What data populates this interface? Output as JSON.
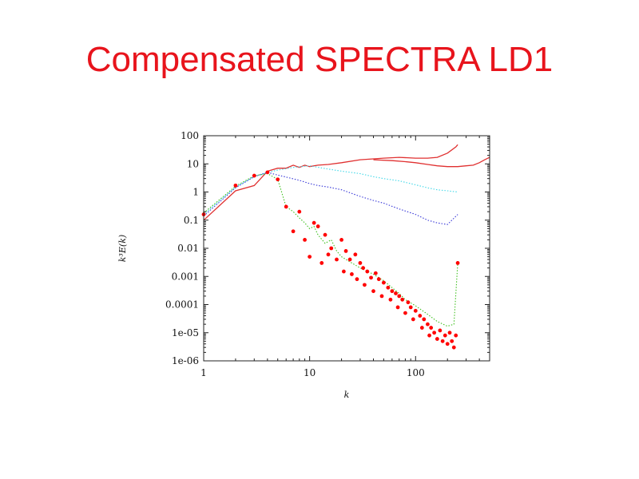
{
  "slide": {
    "title": "Compensated SPECTRA LD1"
  },
  "chart_data": {
    "type": "line",
    "xscale": "log",
    "yscale": "log",
    "xlim": [
      1,
      500
    ],
    "ylim": [
      1e-06,
      100
    ],
    "xlabel": "k",
    "ylabel": "k³E(k)",
    "x_ticks": [
      {
        "value": 1,
        "label": "1"
      },
      {
        "value": 10,
        "label": "10"
      },
      {
        "value": 100,
        "label": "100"
      }
    ],
    "y_ticks": [
      {
        "value": 100,
        "label": "100"
      },
      {
        "value": 10,
        "label": "10"
      },
      {
        "value": 1,
        "label": "1"
      },
      {
        "value": 0.1,
        "label": "0.1"
      },
      {
        "value": 0.01,
        "label": "0.01"
      },
      {
        "value": 0.001,
        "label": "0.001"
      },
      {
        "value": 0.0001,
        "label": "0.0001"
      },
      {
        "value": 1e-05,
        "label": "1e-05"
      },
      {
        "value": 1e-06,
        "label": "1e-06"
      }
    ],
    "grid": false,
    "legend": "none",
    "series": [
      {
        "style": "solid",
        "color": "#e03030",
        "points": [
          [
            1,
            0.1
          ],
          [
            2,
            1.1
          ],
          [
            3,
            1.7
          ],
          [
            4,
            5.5
          ],
          [
            5,
            7
          ],
          [
            6,
            7
          ],
          [
            7,
            9
          ],
          [
            8,
            7.5
          ],
          [
            9,
            9
          ],
          [
            10,
            8
          ],
          [
            12,
            9
          ],
          [
            15,
            9.5
          ],
          [
            20,
            11
          ],
          [
            30,
            14
          ],
          [
            40,
            15
          ],
          [
            50,
            16
          ],
          [
            70,
            17
          ],
          [
            100,
            16
          ],
          [
            130,
            16
          ],
          [
            160,
            17
          ],
          [
            200,
            24
          ],
          [
            240,
            40
          ],
          [
            250,
            48
          ]
        ]
      },
      {
        "style": "solid",
        "color": "#e03030",
        "points": [
          [
            40,
            14
          ],
          [
            60,
            13
          ],
          [
            80,
            12
          ],
          [
            100,
            11
          ],
          [
            130,
            9.5
          ],
          [
            160,
            8.5
          ],
          [
            200,
            8
          ],
          [
            250,
            8
          ],
          [
            300,
            8.5
          ],
          [
            350,
            9
          ],
          [
            400,
            11
          ],
          [
            450,
            14
          ],
          [
            500,
            17
          ]
        ]
      },
      {
        "style": "dotted",
        "color": "#40d8e8",
        "points": [
          [
            1,
            0.16
          ],
          [
            2,
            1.5
          ],
          [
            3,
            3.5
          ],
          [
            4,
            5
          ],
          [
            5,
            6
          ],
          [
            7,
            7.5
          ],
          [
            10,
            8.5
          ],
          [
            15,
            6.5
          ],
          [
            20,
            5.5
          ],
          [
            30,
            4.5
          ],
          [
            40,
            3.5
          ],
          [
            50,
            3
          ],
          [
            70,
            2.5
          ],
          [
            100,
            1.8
          ],
          [
            130,
            1.4
          ],
          [
            160,
            1.2
          ],
          [
            200,
            1.1
          ],
          [
            250,
            1
          ]
        ]
      },
      {
        "style": "dotted",
        "color": "#3838d8",
        "points": [
          [
            1,
            0.14
          ],
          [
            2,
            1.4
          ],
          [
            3,
            3.5
          ],
          [
            4,
            5
          ],
          [
            5,
            4
          ],
          [
            6,
            3.4
          ],
          [
            8,
            2.6
          ],
          [
            10,
            2
          ],
          [
            12,
            1.7
          ],
          [
            15,
            1.5
          ],
          [
            20,
            1.2
          ],
          [
            30,
            0.7
          ],
          [
            40,
            0.5
          ],
          [
            50,
            0.4
          ],
          [
            70,
            0.25
          ],
          [
            100,
            0.16
          ],
          [
            130,
            0.1
          ],
          [
            160,
            0.08
          ],
          [
            200,
            0.07
          ],
          [
            250,
            0.16
          ]
        ]
      },
      {
        "style": "dotted",
        "color": "#40c020",
        "points": [
          [
            1,
            0.18
          ],
          [
            2,
            1.6
          ],
          [
            3,
            3.8
          ],
          [
            4,
            4.5
          ],
          [
            5,
            2.8
          ],
          [
            6,
            0.3
          ],
          [
            7,
            0.2
          ],
          [
            8,
            0.12
          ],
          [
            9,
            0.08
          ],
          [
            10,
            0.05
          ],
          [
            11,
            0.06
          ],
          [
            12,
            0.03
          ],
          [
            14,
            0.015
          ],
          [
            16,
            0.02
          ],
          [
            18,
            0.008
          ],
          [
            20,
            0.005
          ],
          [
            25,
            0.003
          ],
          [
            30,
            0.002
          ],
          [
            40,
            0.0012
          ],
          [
            50,
            0.0007
          ],
          [
            60,
            0.0004
          ],
          [
            70,
            0.00025
          ],
          [
            80,
            0.00015
          ],
          [
            100,
            9e-05
          ],
          [
            130,
            4.5e-05
          ],
          [
            160,
            2.5e-05
          ],
          [
            200,
            1.7e-05
          ],
          [
            230,
            2e-05
          ],
          [
            250,
            0.003
          ]
        ]
      },
      {
        "style": "markers",
        "color": "#ff0000",
        "points": [
          [
            1,
            0.16
          ],
          [
            2,
            1.7
          ],
          [
            3,
            3.8
          ],
          [
            4,
            5
          ],
          [
            5,
            2.8
          ],
          [
            6,
            0.3
          ],
          [
            7,
            0.04
          ],
          [
            8,
            0.2
          ],
          [
            9,
            0.02
          ],
          [
            10,
            0.005
          ],
          [
            11,
            0.08
          ],
          [
            12,
            0.06
          ],
          [
            13,
            0.003
          ],
          [
            14,
            0.03
          ],
          [
            15,
            0.006
          ],
          [
            16,
            0.01
          ],
          [
            18,
            0.004
          ],
          [
            20,
            0.02
          ],
          [
            21,
            0.0015
          ],
          [
            22,
            0.008
          ],
          [
            24,
            0.004
          ],
          [
            25,
            0.0012
          ],
          [
            27,
            0.006
          ],
          [
            28,
            0.0008
          ],
          [
            30,
            0.003
          ],
          [
            32,
            0.002
          ],
          [
            33,
            0.0005
          ],
          [
            35,
            0.0015
          ],
          [
            38,
            0.0009
          ],
          [
            40,
            0.0003
          ],
          [
            42,
            0.0013
          ],
          [
            45,
            0.0008
          ],
          [
            48,
            0.0002
          ],
          [
            50,
            0.0006
          ],
          [
            55,
            0.0004
          ],
          [
            58,
            0.00015
          ],
          [
            60,
            0.0003
          ],
          [
            65,
            0.00025
          ],
          [
            68,
            8e-05
          ],
          [
            70,
            0.0002
          ],
          [
            75,
            0.00015
          ],
          [
            80,
            5e-05
          ],
          [
            85,
            0.00012
          ],
          [
            90,
            8e-05
          ],
          [
            95,
            3e-05
          ],
          [
            100,
            6e-05
          ],
          [
            110,
            4e-05
          ],
          [
            115,
            1.5e-05
          ],
          [
            120,
            3e-05
          ],
          [
            130,
            2e-05
          ],
          [
            135,
            8e-06
          ],
          [
            140,
            1.5e-05
          ],
          [
            150,
            1e-05
          ],
          [
            160,
            6e-06
          ],
          [
            170,
            1.2e-05
          ],
          [
            180,
            5e-06
          ],
          [
            190,
            8e-06
          ],
          [
            200,
            4e-06
          ],
          [
            210,
            1e-05
          ],
          [
            220,
            5e-06
          ],
          [
            230,
            3e-06
          ],
          [
            240,
            8e-06
          ],
          [
            250,
            0.003
          ]
        ]
      }
    ]
  }
}
